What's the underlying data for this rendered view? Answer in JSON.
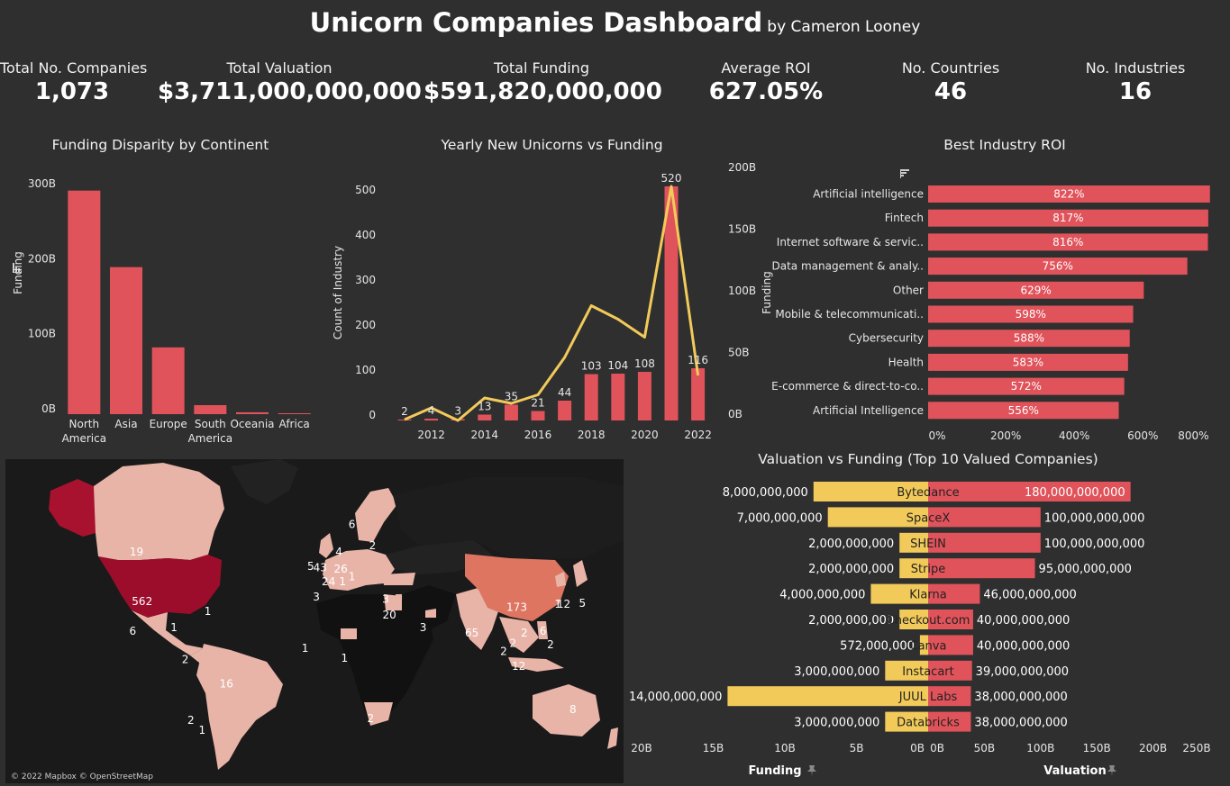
{
  "header": {
    "title": "Unicorn Companies Dashboard",
    "byline": "by Cameron Looney"
  },
  "kpis": [
    {
      "label": "Total No. Companies",
      "value": "1,073"
    },
    {
      "label": "Total Valuation",
      "value": "$3,711,000,000,000"
    },
    {
      "label": "Total Funding",
      "value": "$591,820,000,000"
    },
    {
      "label": "Average ROI",
      "value": "627.05%"
    },
    {
      "label": "No. Countries",
      "value": "46"
    },
    {
      "label": "No. Industries",
      "value": "16"
    }
  ],
  "colors": {
    "bar": "#e0535b",
    "line": "#f2ca5a",
    "background": "#2f2f2f",
    "map_ocean": "#1a1a1a"
  },
  "chart_data": [
    {
      "type": "bar",
      "title": "Funding Disparity by Continent",
      "ylabel": "Funding",
      "categories": [
        "North America",
        "Asia",
        "Europe",
        "South America",
        "Oceania",
        "Africa"
      ],
      "category_lines": [
        [
          "North",
          "America"
        ],
        [
          "Asia"
        ],
        [
          "Europe"
        ],
        [
          "South",
          "America"
        ],
        [
          "Oceania"
        ],
        [
          "Africa"
        ]
      ],
      "values": [
        298,
        196,
        89,
        12,
        2.5,
        1.2
      ],
      "unit": "B",
      "ylim": [
        0,
        300
      ],
      "yticks": [
        "0B",
        "100B",
        "200B",
        "300B"
      ],
      "ytick_values": [
        0,
        100,
        200,
        300
      ]
    },
    {
      "type": "bar+line",
      "title": "Yearly New Unicorns vs Funding",
      "ylabel": "Count of Industry",
      "x": [
        2011,
        2012,
        2013,
        2014,
        2015,
        2016,
        2017,
        2018,
        2019,
        2020,
        2021,
        2022
      ],
      "xticks": [
        "2012",
        "2014",
        "2016",
        "2018",
        "2020",
        "2022"
      ],
      "series": [
        {
          "name": "Count of Industry",
          "values": [
            2,
            4,
            3,
            13,
            35,
            21,
            44,
            103,
            104,
            108,
            520,
            116
          ]
        },
        {
          "values": [
            2,
            28,
            0,
            50,
            38,
            57,
            140,
            255,
            225,
            185,
            520,
            100
          ]
        }
      ],
      "ylim": [
        0,
        540
      ],
      "yticks": [
        "0",
        "100",
        "200",
        "300",
        "400",
        "500"
      ],
      "ytick_values": [
        0,
        100,
        200,
        300,
        400,
        500
      ]
    },
    {
      "type": "bar",
      "title": "Best Industry ROI",
      "orientation": "horizontal",
      "categories": [
        "Artificial intelligence",
        "Fintech",
        "Internet software & servic..",
        "Data management & analy..",
        "Other",
        "Mobile & telecommunicati..",
        "Cybersecurity",
        "Health",
        "E-commerce & direct-to-co..",
        "Artificial Intelligence"
      ],
      "values": [
        822,
        817,
        816,
        756,
        629,
        598,
        588,
        583,
        572,
        556
      ],
      "value_labels": [
        "822%",
        "817%",
        "816%",
        "756%",
        "629%",
        "598%",
        "588%",
        "583%",
        "572%",
        "556%"
      ],
      "xlim": [
        0,
        820
      ],
      "xticks": [
        "0%",
        "200%",
        "400%",
        "600%",
        "800%"
      ],
      "xtick_values": [
        0,
        200,
        400,
        600,
        800
      ],
      "secondary_axis": {
        "label": "Funding",
        "ticks": [
          "0B",
          "50B",
          "100B",
          "150B",
          "200B"
        ]
      }
    },
    {
      "type": "bar",
      "title": "Valuation vs Funding (Top 10 Valued Companies)",
      "orientation": "diverging",
      "categories": [
        "Bytedance",
        "SpaceX",
        "SHEIN",
        "Stripe",
        "Klarna",
        "Checkout.com",
        "Canva",
        "Instacart",
        "JUUL Labs",
        "Databricks"
      ],
      "series": [
        {
          "name": "Funding",
          "values": [
            8000000000,
            7000000000,
            2000000000,
            2000000000,
            4000000000,
            2000000000,
            572000000,
            3000000000,
            14000000000,
            3000000000
          ],
          "labels": [
            "8,000,000,000",
            "7,000,000,000",
            "2,000,000,000",
            "2,000,000,000",
            "4,000,000,000",
            "2,000,000,000",
            "572,000,000",
            "3,000,000,000",
            "14,000,000,000",
            "3,000,000,000"
          ]
        },
        {
          "name": "Valuation",
          "values": [
            180000000000,
            100000000000,
            100000000000,
            95000000000,
            46000000000,
            40000000000,
            40000000000,
            39000000000,
            38000000000,
            38000000000
          ],
          "labels": [
            "180,000,000,000",
            "100,000,000,000",
            "100,000,000,000",
            "95,000,000,000",
            "46,000,000,000",
            "40,000,000,000",
            "40,000,000,000",
            "39,000,000,000",
            "38,000,000,000",
            "38,000,000,000"
          ]
        }
      ],
      "funding_xlim": [
        0,
        20
      ],
      "funding_xticks": [
        "20B",
        "15B",
        "10B",
        "5B",
        "0B"
      ],
      "valuation_xlim": [
        0,
        250
      ],
      "valuation_xticks": [
        "0B",
        "50B",
        "100B",
        "150B",
        "200B",
        "250B"
      ],
      "xlabels": [
        "Funding",
        "Valuation"
      ]
    }
  ],
  "map": {
    "attribution": "© 2022 Mapbox © OpenStreetMap",
    "labels": [
      {
        "text": "19",
        "lon": -100,
        "lat": 58
      },
      {
        "text": "562",
        "lon": -97,
        "lat": 38
      },
      {
        "text": "1",
        "lon": -62,
        "lat": 33
      },
      {
        "text": "6",
        "lon": -102,
        "lat": 22
      },
      {
        "text": "1",
        "lon": -80,
        "lat": 24
      },
      {
        "text": "2",
        "lon": -74,
        "lat": 5
      },
      {
        "text": "16",
        "lon": -52,
        "lat": -10
      },
      {
        "text": "2",
        "lon": -71,
        "lat": -31
      },
      {
        "text": "1",
        "lon": -65,
        "lat": -36
      },
      {
        "text": "6",
        "lon": 15,
        "lat": 66
      },
      {
        "text": "2",
        "lon": 26,
        "lat": 60
      },
      {
        "text": "4",
        "lon": 8,
        "lat": 58
      },
      {
        "text": "5",
        "lon": -7,
        "lat": 53
      },
      {
        "text": "43",
        "lon": -2,
        "lat": 52.5
      },
      {
        "text": "26",
        "lon": 9,
        "lat": 52
      },
      {
        "text": "24",
        "lon": 2.5,
        "lat": 47
      },
      {
        "text": "1",
        "lon": 10,
        "lat": 47
      },
      {
        "text": "1",
        "lon": 15,
        "lat": 49
      },
      {
        "text": "3",
        "lon": -4,
        "lat": 40
      },
      {
        "text": "3",
        "lon": 33,
        "lat": 39
      },
      {
        "text": "20",
        "lon": 35,
        "lat": 31
      },
      {
        "text": "3",
        "lon": 53,
        "lat": 24
      },
      {
        "text": "1",
        "lon": -10,
        "lat": 12
      },
      {
        "text": "1",
        "lon": 11,
        "lat": 6
      },
      {
        "text": "173",
        "lon": 103,
        "lat": 35
      },
      {
        "text": "1",
        "lon": 125,
        "lat": 36.5
      },
      {
        "text": "12",
        "lon": 128,
        "lat": 36.5
      },
      {
        "text": "5",
        "lon": 138,
        "lat": 37
      },
      {
        "text": "65",
        "lon": 79,
        "lat": 21
      },
      {
        "text": "2",
        "lon": 101,
        "lat": 15
      },
      {
        "text": "2",
        "lon": 107,
        "lat": 21
      },
      {
        "text": "6",
        "lon": 117,
        "lat": 22
      },
      {
        "text": "2",
        "lon": 96,
        "lat": 10
      },
      {
        "text": "2",
        "lon": 121,
        "lat": 14
      },
      {
        "text": "12",
        "lon": 104,
        "lat": 1
      },
      {
        "text": "8",
        "lon": 133,
        "lat": -25
      },
      {
        "text": "2",
        "lon": 25,
        "lat": -30
      }
    ]
  }
}
